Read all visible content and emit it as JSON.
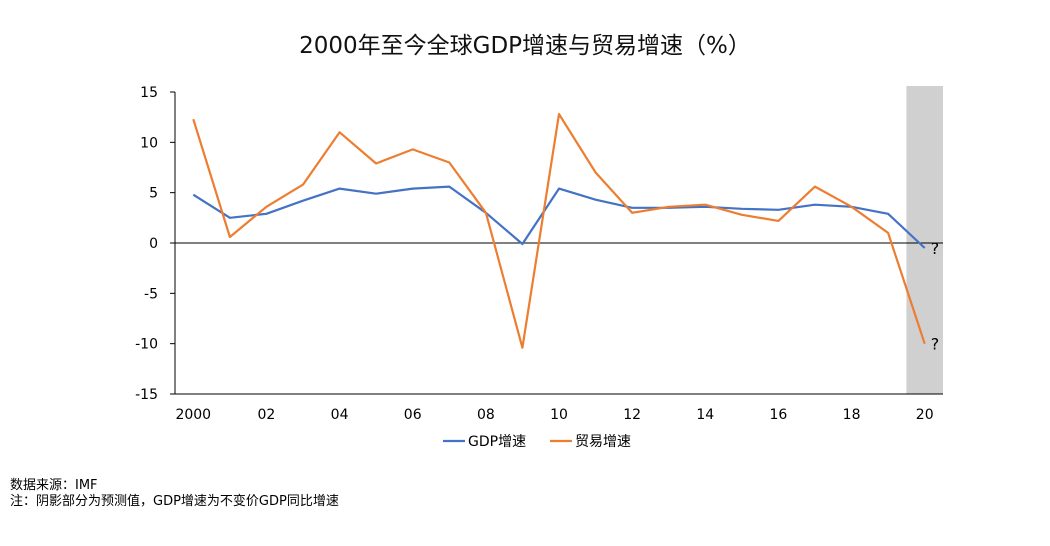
{
  "chart_data": {
    "type": "line",
    "title": "2000年至今全球GDP增速与贸易增速（%）",
    "xlabel": "",
    "ylabel": "",
    "ylim": [
      -15,
      15
    ],
    "yticks": [
      "15",
      "10",
      "5",
      "0",
      "-5",
      "-10",
      "-15"
    ],
    "xticks": [
      "2000",
      "02",
      "04",
      "06",
      "08",
      "10",
      "12",
      "14",
      "16",
      "18",
      "20"
    ],
    "x": [
      2000,
      2001,
      2002,
      2003,
      2004,
      2005,
      2006,
      2007,
      2008,
      2009,
      2010,
      2011,
      2012,
      2013,
      2014,
      2015,
      2016,
      2017,
      2018,
      2019,
      2020
    ],
    "series": [
      {
        "name": "GDP增速",
        "color": "#4472C4",
        "values": [
          4.8,
          2.5,
          2.9,
          4.2,
          5.4,
          4.9,
          5.4,
          5.6,
          3.0,
          -0.1,
          5.4,
          4.3,
          3.5,
          3.5,
          3.6,
          3.4,
          3.3,
          3.8,
          3.6,
          2.9,
          -0.5
        ]
      },
      {
        "name": "贸易增速",
        "color": "#ED7D31",
        "values": [
          12.3,
          0.6,
          3.6,
          5.8,
          11.0,
          7.9,
          9.3,
          8.0,
          3.0,
          -10.4,
          12.8,
          7.0,
          3.0,
          3.6,
          3.8,
          2.8,
          2.2,
          5.6,
          3.6,
          1.0,
          -10.0
        ]
      }
    ],
    "shaded_region": {
      "from": 2019.5,
      "to": 2020.5,
      "color": "#d0d0d0"
    },
    "annotations": [
      "?",
      "?"
    ],
    "legend_position": "bottom"
  },
  "footnotes": {
    "source": "数据来源：IMF",
    "note": "注：阴影部分为预测值，GDP增速为不变价GDP同比增速"
  }
}
